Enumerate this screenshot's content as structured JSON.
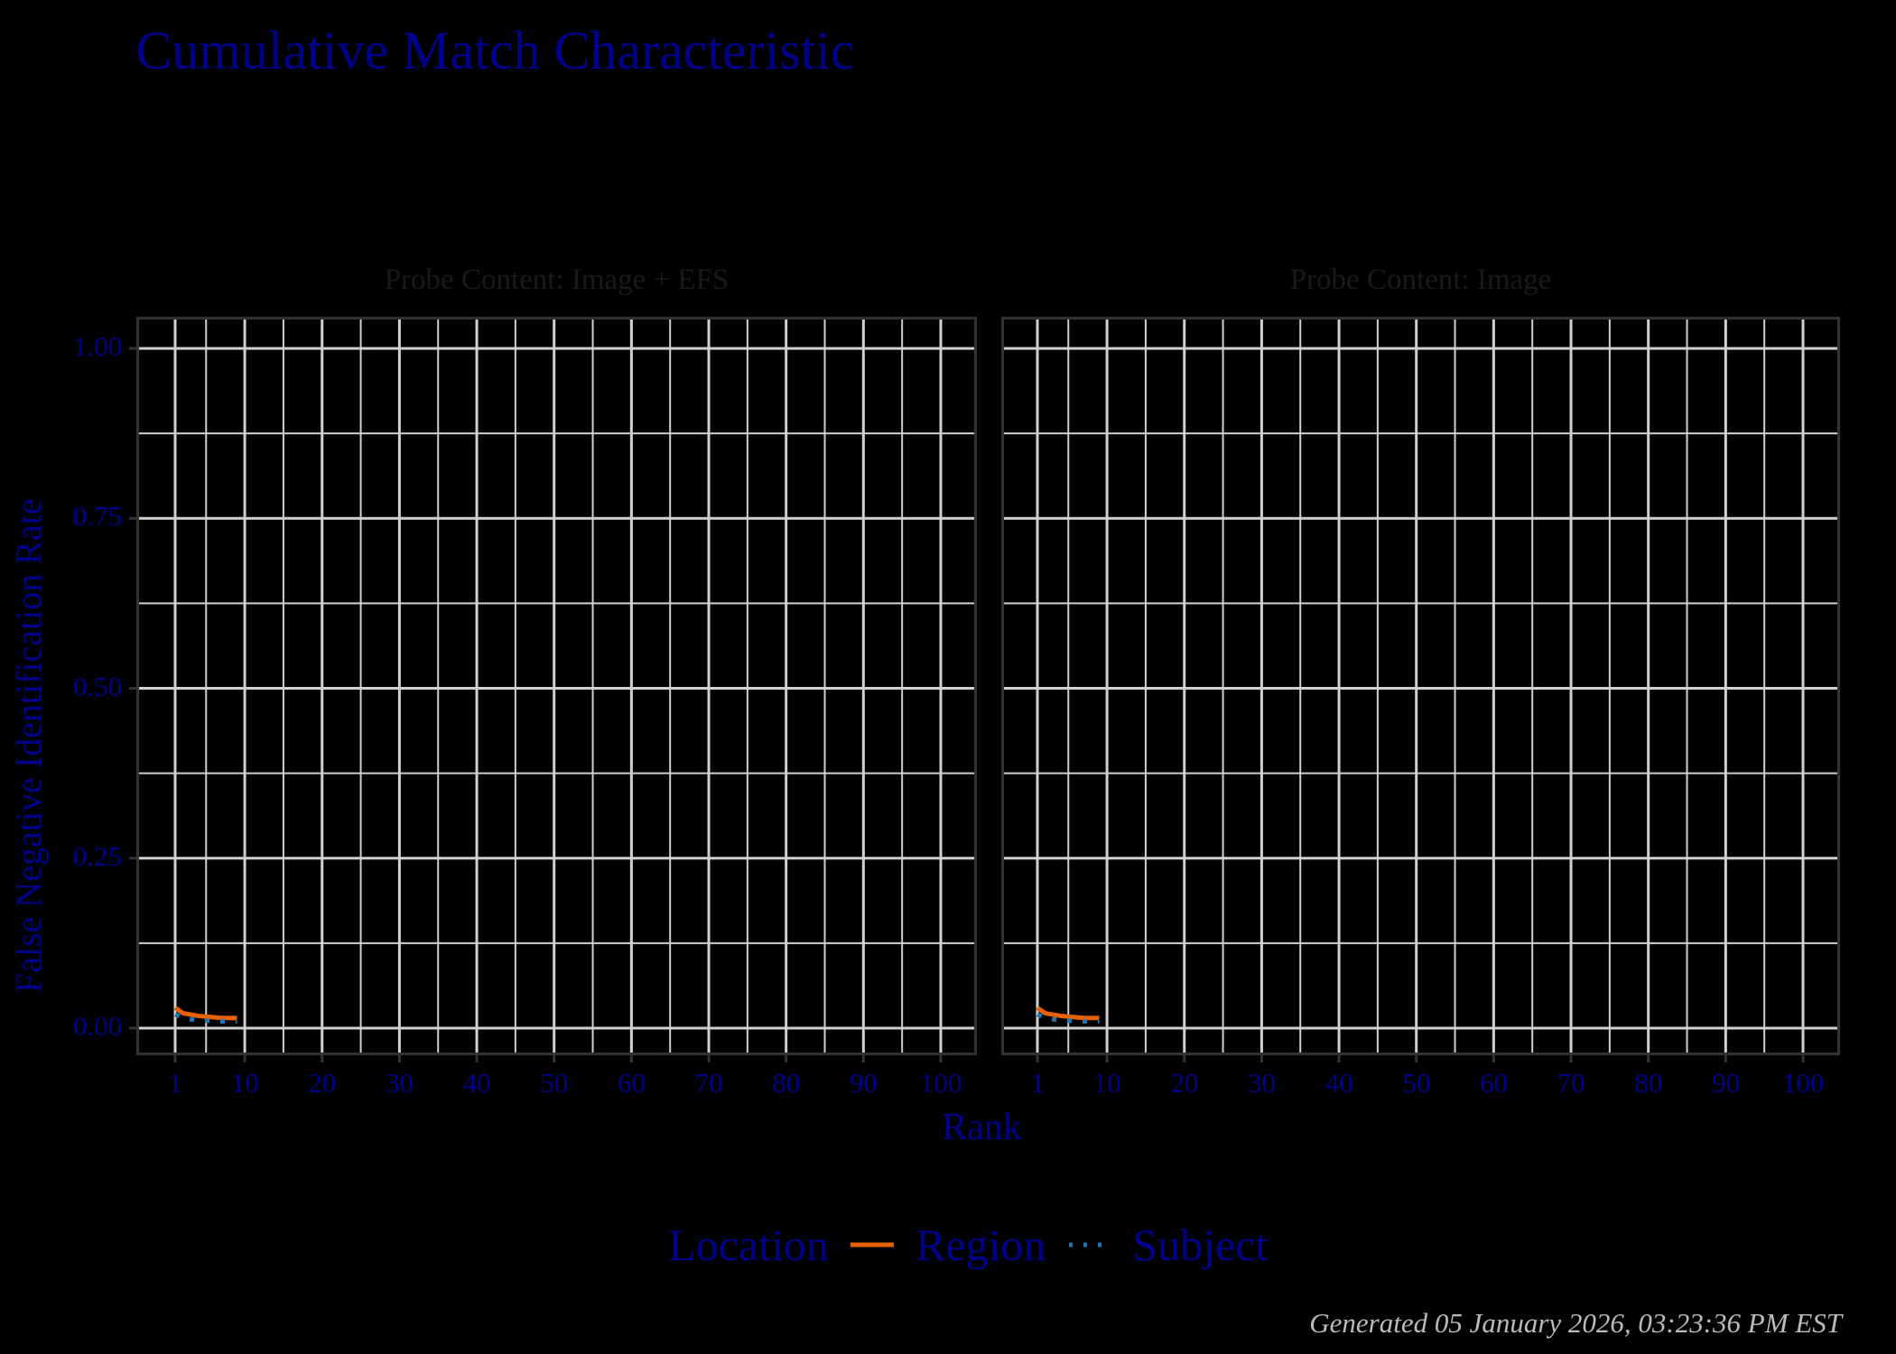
{
  "chart_data": {
    "type": "line",
    "title": "Cumulative Match Characteristic",
    "xlabel": "Rank",
    "ylabel": "False Negative Identification Rate",
    "xlim": [
      -4,
      104.7
    ],
    "ylim": [
      -0.04,
      1.047
    ],
    "x_ticks": [
      1,
      10,
      20,
      30,
      40,
      50,
      60,
      70,
      80,
      90,
      100
    ],
    "y_ticks": [
      "0.00",
      "0.25",
      "0.50",
      "0.75",
      "1.00"
    ],
    "grid": true,
    "legend": {
      "title": "Location",
      "position": "bottom",
      "entries": [
        {
          "name": "Region",
          "color": "#e66101",
          "style": "solid"
        },
        {
          "name": "Subject",
          "color": "#1f78b4",
          "style": "dotted"
        }
      ]
    },
    "facets": [
      {
        "label": "Probe Content: Image + EFS",
        "series": [
          {
            "name": "Region",
            "x": [
              1,
              2,
              3,
              4,
              5,
              6,
              7,
              8,
              9
            ],
            "values": [
              0.03,
              0.022,
              0.02,
              0.018,
              0.017,
              0.016,
              0.015,
              0.015,
              0.015
            ]
          },
          {
            "name": "Subject",
            "x": [
              1,
              2,
              3,
              4,
              5,
              6,
              7,
              8,
              9
            ],
            "values": [
              0.02,
              0.015,
              0.013,
              0.012,
              0.011,
              0.01,
              0.01,
              0.01,
              0.01
            ]
          }
        ]
      },
      {
        "label": "Probe Content: Image",
        "series": [
          {
            "name": "Region",
            "x": [
              1,
              2,
              3,
              4,
              5,
              6,
              7,
              8,
              9
            ],
            "values": [
              0.03,
              0.022,
              0.02,
              0.018,
              0.017,
              0.016,
              0.015,
              0.015,
              0.015
            ]
          },
          {
            "name": "Subject",
            "x": [
              1,
              2,
              3,
              4,
              5,
              6,
              7,
              8,
              9
            ],
            "values": [
              0.02,
              0.015,
              0.013,
              0.012,
              0.011,
              0.01,
              0.01,
              0.01,
              0.01
            ]
          }
        ]
      }
    ]
  },
  "title": "Cumulative Match Characteristic",
  "facets": [
    "Probe Content: Image + EFS",
    "Probe Content: Image"
  ],
  "axes": {
    "xlabel": "Rank",
    "ylabel": "False Negative Identification Rate",
    "xticks": [
      "1",
      "10",
      "20",
      "30",
      "40",
      "50",
      "60",
      "70",
      "80",
      "90",
      "100"
    ],
    "yticks": [
      "0.00",
      "0.25",
      "0.50",
      "0.75",
      "1.00"
    ]
  },
  "legend": {
    "title": "Location",
    "region": "Region",
    "subject": "Subject",
    "region_color": "#e66101",
    "subject_color": "#1f78b4"
  },
  "footer": "Generated 05 January 2026, 03:23:36 PM EST"
}
